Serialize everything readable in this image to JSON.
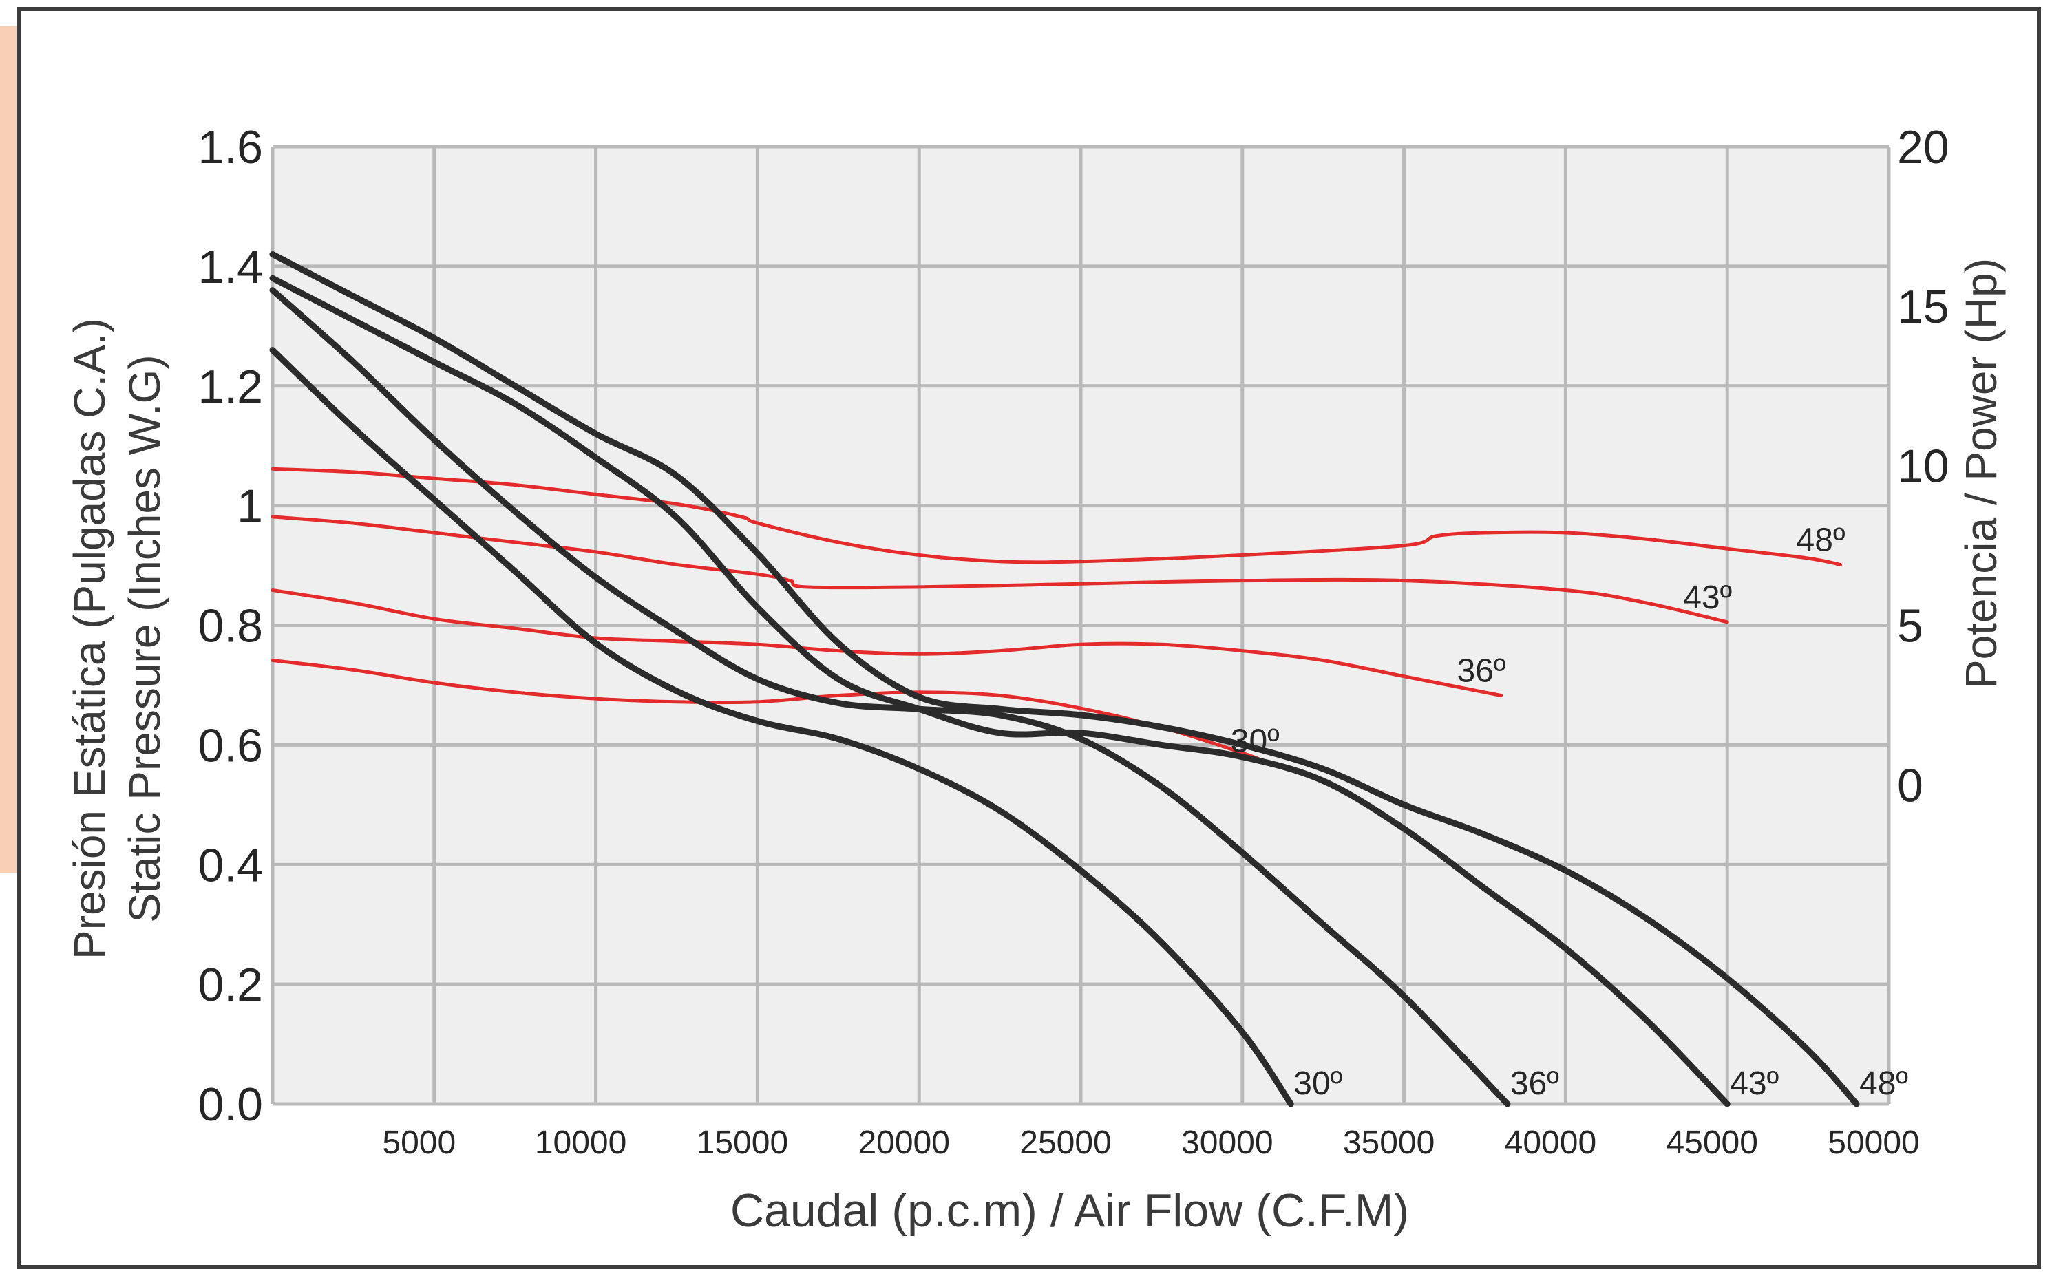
{
  "chart_data": {
    "type": "line",
    "xlabel": "Caudal (p.c.m) / Air Flow (C.F.M)",
    "ylabel": [
      "Presión Estática (Pulgadas C.A.)",
      "Static Pressure (Inches W.G)"
    ],
    "y2label": "Potencia / Power (Hp)",
    "xlim": [
      0,
      50000
    ],
    "ylim": [
      0,
      1.6
    ],
    "y2lim": [
      -10,
      20
    ],
    "xticks": [
      5000,
      10000,
      15000,
      20000,
      25000,
      30000,
      35000,
      40000,
      45000,
      50000
    ],
    "yticks": [
      {
        "value": 1.6,
        "label": "1.6"
      },
      {
        "value": 1.4,
        "label": "1.4"
      },
      {
        "value": 1.2,
        "label": "1.2"
      },
      {
        "value": 1.0,
        "label": "1"
      },
      {
        "value": 0.8,
        "label": "0.8"
      },
      {
        "value": 0.6,
        "label": "0.6"
      },
      {
        "value": 0.4,
        "label": "0.4"
      },
      {
        "value": 0.2,
        "label": "0.2"
      },
      {
        "value": 0.0,
        "label": "0.0"
      }
    ],
    "y2ticks": [
      {
        "value": 20,
        "label": "20"
      },
      {
        "value": 15,
        "label": "15"
      },
      {
        "value": 10,
        "label": "10"
      },
      {
        "value": 5,
        "label": "5"
      },
      {
        "value": 0,
        "label": "0"
      }
    ],
    "grid": true,
    "pressure_series": [
      {
        "label": "30º",
        "color": "#2b2b2b",
        "x": [
          0,
          2500,
          5000,
          7500,
          10000,
          12500,
          15000,
          17500,
          20000,
          22500,
          25000,
          27500,
          30000,
          31500
        ],
        "y": [
          1.26,
          1.13,
          1.01,
          0.89,
          0.77,
          0.69,
          0.64,
          0.61,
          0.56,
          0.49,
          0.39,
          0.27,
          0.12,
          0.0
        ]
      },
      {
        "label": "36º",
        "color": "#2b2b2b",
        "x": [
          0,
          2500,
          5000,
          7500,
          10000,
          12500,
          15000,
          17500,
          20000,
          22500,
          25000,
          27500,
          30000,
          32500,
          35000,
          38200
        ],
        "y": [
          1.36,
          1.24,
          1.11,
          0.99,
          0.88,
          0.79,
          0.71,
          0.67,
          0.66,
          0.65,
          0.61,
          0.53,
          0.42,
          0.3,
          0.18,
          0.0
        ]
      },
      {
        "label": "43º",
        "color": "#2b2b2b",
        "x": [
          0,
          2500,
          5000,
          7500,
          10000,
          12500,
          15000,
          17500,
          20000,
          22500,
          25000,
          27500,
          30000,
          32500,
          35000,
          37500,
          40000,
          42500,
          45000
        ],
        "y": [
          1.38,
          1.31,
          1.24,
          1.17,
          1.08,
          0.98,
          0.83,
          0.71,
          0.66,
          0.62,
          0.62,
          0.6,
          0.58,
          0.54,
          0.46,
          0.36,
          0.26,
          0.14,
          0.0
        ]
      },
      {
        "label": "48º",
        "color": "#2b2b2b",
        "x": [
          0,
          2500,
          5000,
          7500,
          10000,
          12500,
          15000,
          17500,
          20000,
          22500,
          25000,
          27500,
          30000,
          32500,
          35000,
          37500,
          40000,
          42500,
          45000,
          47500,
          49000
        ],
        "y": [
          1.42,
          1.35,
          1.28,
          1.2,
          1.12,
          1.05,
          0.92,
          0.77,
          0.68,
          0.66,
          0.65,
          0.63,
          0.6,
          0.56,
          0.5,
          0.45,
          0.39,
          0.31,
          0.21,
          0.09,
          0.0
        ]
      }
    ],
    "power_series": [
      {
        "label": "30º",
        "color": "#e32b2b",
        "x": [
          0,
          2500,
          5000,
          7500,
          10000,
          12500,
          15000,
          17500,
          20000,
          22500,
          25000,
          27500,
          30000,
          31000
        ],
        "y": [
          3.9,
          3.6,
          3.2,
          2.9,
          2.7,
          2.6,
          2.6,
          2.8,
          2.9,
          2.8,
          2.4,
          1.8,
          1.0,
          0.6
        ]
      },
      {
        "label": "36º",
        "color": "#e32b2b",
        "x": [
          0,
          2500,
          5000,
          7500,
          10000,
          12500,
          15000,
          17500,
          20000,
          22500,
          25000,
          27500,
          30000,
          32500,
          35000,
          37500,
          38000
        ],
        "y": [
          6.1,
          5.7,
          5.2,
          4.9,
          4.6,
          4.5,
          4.4,
          4.2,
          4.1,
          4.2,
          4.4,
          4.4,
          4.2,
          3.9,
          3.4,
          2.9,
          2.8
        ]
      },
      {
        "label": "43º",
        "color": "#e32b2b",
        "x": [
          0,
          2500,
          5000,
          7500,
          10000,
          12500,
          15000,
          16000,
          16500,
          20000,
          25000,
          30000,
          35000,
          40000,
          42500,
          45000
        ],
        "y": [
          8.4,
          8.2,
          7.9,
          7.6,
          7.3,
          6.9,
          6.6,
          6.4,
          6.2,
          6.2,
          6.3,
          6.4,
          6.4,
          6.1,
          5.7,
          5.1
        ]
      },
      {
        "label": "48º",
        "color": "#e32b2b",
        "x": [
          0,
          2500,
          5000,
          7500,
          10000,
          12500,
          14500,
          15000,
          17500,
          20000,
          22500,
          25000,
          30000,
          35000,
          36000,
          37500,
          40000,
          42500,
          45000,
          47500,
          48500
        ],
        "y": [
          9.9,
          9.8,
          9.6,
          9.4,
          9.1,
          8.8,
          8.4,
          8.2,
          7.6,
          7.2,
          7.0,
          7.0,
          7.2,
          7.5,
          7.8,
          7.9,
          7.9,
          7.7,
          7.4,
          7.1,
          6.9
        ]
      }
    ],
    "style": {
      "pressure_color": "#2b2b2b",
      "power_color": "#e32b2b",
      "grid_color": "#b9b9b9",
      "plot_background": "#efefef",
      "accent_bar_color": "#f7d0b5"
    }
  }
}
